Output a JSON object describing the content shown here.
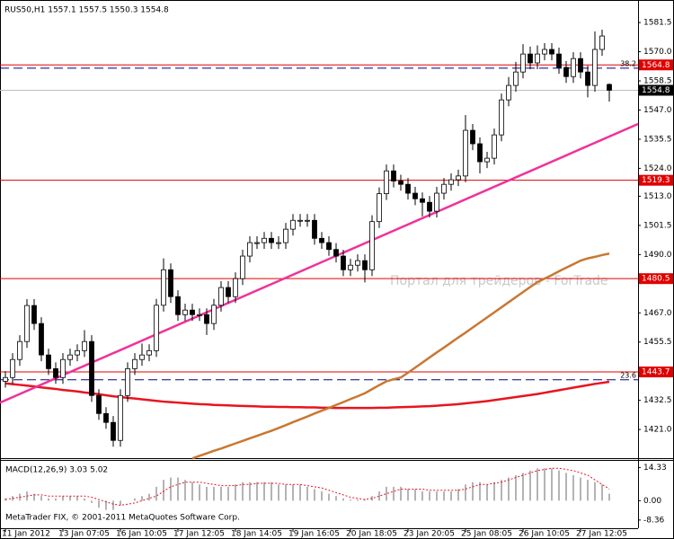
{
  "title": "RUS50,H1  1557.1 1557.5 1550.3 1554.8",
  "footer": "MetaTrader FIX, © 2001-2011 MetaQuotes Software Corp.",
  "watermark": "Портал для трейдеров - ForTrade",
  "chart_data": [
    {
      "type": "candlestick",
      "categories": [
        "11 Jan 2012",
        null,
        null,
        null,
        null,
        null,
        null,
        null,
        "13 Jan 07:05",
        null,
        null,
        null,
        null,
        null,
        null,
        null,
        "16 Jan 10:05",
        null,
        null,
        null,
        null,
        null,
        null,
        null,
        "17 Jan 12:05",
        null,
        null,
        null,
        null,
        null,
        null,
        null,
        "18 Jan 14:05",
        null,
        null,
        null,
        null,
        null,
        null,
        null,
        "19 Jan 16:05",
        null,
        null,
        null,
        null,
        null,
        null,
        null,
        "20 Jan 18:05",
        null,
        null,
        null,
        null,
        null,
        null,
        null,
        "23 Jan 20:05",
        null,
        null,
        null,
        null,
        null,
        null,
        null,
        "25 Jan 08:05",
        null,
        null,
        null,
        null,
        null,
        null,
        null,
        "26 Jan 10:05",
        null,
        null,
        null,
        null,
        null,
        null,
        null,
        "27 Jan 12:05",
        null,
        null,
        null,
        null
      ],
      "open": [
        1440.0,
        1441.5,
        1448.6,
        1455.7,
        1469.9,
        1462.8,
        1450.4,
        1445.0,
        1441.5,
        1448.6,
        1450.4,
        1452.1,
        1455.7,
        1434.4,
        1427.3,
        1423.8,
        1416.7,
        1434.4,
        1445.0,
        1448.6,
        1450.4,
        1452.1,
        1470.0,
        1484.0,
        1473.4,
        1466.3,
        1468.1,
        1466.3,
        1466.3,
        1462.8,
        1470.0,
        1477.0,
        1473.4,
        1480.5,
        1489.4,
        1494.7,
        1494.7,
        1496.4,
        1494.7,
        1494.7,
        1500.0,
        1503.5,
        1503.5,
        1503.5,
        1496.4,
        1494.7,
        1492.0,
        1489.4,
        1484.0,
        1485.8,
        1487.6,
        1484.0,
        1503.0,
        1514.0,
        1523.0,
        1519.0,
        1517.7,
        1514.2,
        1512.0,
        1510.6,
        1507.1,
        1514.2,
        1517.7,
        1519.5,
        1521.0,
        1539.0,
        1533.7,
        1526.6,
        1528.0,
        1537.2,
        1551.0,
        1556.7,
        1562.0,
        1569.1,
        1565.6,
        1569.1,
        1570.9,
        1569.1,
        1563.8,
        1560.2,
        1567.3,
        1562.0,
        1556.7,
        1570.9,
        1557.1
      ],
      "high": [
        1444.0,
        1451.1,
        1458.2,
        1472.4,
        1472.4,
        1465.3,
        1452.9,
        1447.5,
        1451.1,
        1452.9,
        1454.6,
        1460.2,
        1458.2,
        1436.9,
        1429.8,
        1426.3,
        1436.9,
        1447.5,
        1451.1,
        1454.9,
        1454.6,
        1472.5,
        1488.5,
        1486.5,
        1475.9,
        1470.6,
        1470.6,
        1468.8,
        1468.8,
        1472.5,
        1479.5,
        1479.5,
        1483.0,
        1491.9,
        1497.2,
        1497.2,
        1498.9,
        1498.9,
        1497.2,
        1502.5,
        1506.0,
        1506.0,
        1506.0,
        1506.0,
        1498.9,
        1497.2,
        1494.5,
        1491.9,
        1488.3,
        1490.1,
        1490.1,
        1505.5,
        1516.5,
        1525.5,
        1525.5,
        1521.5,
        1520.2,
        1516.7,
        1514.5,
        1513.1,
        1516.7,
        1520.2,
        1522.0,
        1523.5,
        1545.0,
        1541.5,
        1536.2,
        1530.5,
        1539.7,
        1553.5,
        1560.0,
        1566.0,
        1573.0,
        1572.0,
        1572.5,
        1573.4,
        1573.4,
        1571.6,
        1566.3,
        1569.8,
        1569.8,
        1564.5,
        1578.0,
        1578.7,
        1557.5
      ],
      "low": [
        1437.5,
        1439.0,
        1446.1,
        1453.2,
        1460.3,
        1447.9,
        1442.5,
        1439.0,
        1439.0,
        1446.1,
        1447.9,
        1449.6,
        1431.9,
        1424.8,
        1421.3,
        1414.2,
        1414.2,
        1431.9,
        1442.5,
        1446.1,
        1447.9,
        1449.6,
        1467.5,
        1470.9,
        1463.8,
        1463.8,
        1463.8,
        1463.8,
        1458.3,
        1460.3,
        1467.5,
        1470.9,
        1470.9,
        1478.0,
        1486.9,
        1492.2,
        1492.2,
        1492.2,
        1492.2,
        1492.2,
        1497.5,
        1501.0,
        1501.0,
        1493.9,
        1492.2,
        1489.5,
        1486.9,
        1481.5,
        1481.5,
        1483.3,
        1479.0,
        1481.5,
        1500.5,
        1511.5,
        1516.5,
        1515.2,
        1511.7,
        1509.5,
        1505.0,
        1504.6,
        1504.6,
        1511.7,
        1515.2,
        1517.0,
        1518.5,
        1531.2,
        1522.0,
        1524.1,
        1525.5,
        1534.7,
        1548.5,
        1554.2,
        1559.5,
        1563.1,
        1563.1,
        1566.6,
        1566.6,
        1561.3,
        1557.7,
        1557.7,
        1559.5,
        1552.0,
        1554.2,
        1568.4,
        1550.3
      ],
      "close": [
        1441.5,
        1448.6,
        1455.7,
        1469.9,
        1462.8,
        1450.4,
        1445.0,
        1441.5,
        1448.6,
        1450.4,
        1452.1,
        1455.7,
        1434.4,
        1427.3,
        1423.8,
        1416.7,
        1434.4,
        1445.0,
        1448.6,
        1450.4,
        1452.1,
        1470.0,
        1484.0,
        1473.4,
        1466.3,
        1468.1,
        1466.3,
        1466.3,
        1462.8,
        1470.0,
        1477.0,
        1473.4,
        1480.5,
        1489.4,
        1494.7,
        1494.7,
        1496.4,
        1494.7,
        1494.7,
        1500.0,
        1503.5,
        1503.5,
        1503.5,
        1496.4,
        1494.7,
        1492.0,
        1489.4,
        1484.0,
        1485.8,
        1487.6,
        1484.0,
        1503.0,
        1514.0,
        1523.0,
        1519.0,
        1517.7,
        1514.2,
        1512.0,
        1510.6,
        1507.1,
        1514.2,
        1517.7,
        1519.5,
        1521.0,
        1539.0,
        1533.7,
        1526.6,
        1528.0,
        1537.2,
        1551.0,
        1556.7,
        1562.0,
        1569.1,
        1565.6,
        1569.1,
        1570.9,
        1569.1,
        1563.8,
        1560.2,
        1567.3,
        1562.0,
        1556.7,
        1570.9,
        1576.2,
        1554.8
      ],
      "moving_averages": [
        {
          "color": "#e8141e",
          "values": [
            1439.2,
            1438.9,
            1438.6,
            1438.3,
            1438.0,
            1437.6,
            1437.3,
            1437.0,
            1436.6,
            1436.3,
            1436.0,
            1435.6,
            1435.3,
            1434.9,
            1434.5,
            1434.1,
            1433.8,
            1433.5,
            1433.2,
            1432.9,
            1432.6,
            1432.3,
            1432.0,
            1431.8,
            1431.6,
            1431.4,
            1431.2,
            1431.0,
            1430.9,
            1430.7,
            1430.6,
            1430.5,
            1430.4,
            1430.3,
            1430.2,
            1430.1,
            1430.0,
            1430.0,
            1429.9,
            1429.9,
            1429.8,
            1429.8,
            1429.7,
            1429.7,
            1429.6,
            1429.6,
            1429.5,
            1429.5,
            1429.5,
            1429.5,
            1429.5,
            1429.5,
            1429.6,
            1429.6,
            1429.7,
            1429.8,
            1429.9,
            1430.0,
            1430.1,
            1430.2,
            1430.4,
            1430.6,
            1430.8,
            1431.0,
            1431.3,
            1431.6,
            1431.9,
            1432.2,
            1432.6,
            1433.0,
            1433.4,
            1433.8,
            1434.2,
            1434.6,
            1435.0,
            1435.5,
            1436.0,
            1436.5,
            1437.0,
            1437.5,
            1438.0,
            1438.5,
            1439.0,
            1439.4,
            1439.8
          ]
        },
        {
          "color": "#c87832",
          "values": [
            null,
            null,
            null,
            null,
            null,
            null,
            null,
            null,
            null,
            null,
            null,
            null,
            null,
            null,
            null,
            null,
            null,
            null,
            null,
            null,
            null,
            null,
            null,
            null,
            null,
            null,
            1409.6,
            1410.6,
            1411.6,
            1412.6,
            1413.5,
            1414.5,
            1415.5,
            1416.5,
            1417.5,
            1418.5,
            1419.5,
            1420.5,
            1421.6,
            1422.7,
            1423.9,
            1425.0,
            1426.1,
            1427.3,
            1428.4,
            1429.5,
            1430.7,
            1431.8,
            1433.0,
            1434.1,
            1435.3,
            1436.9,
            1438.5,
            1440.0,
            1440.8,
            1441.5,
            1443.4,
            1445.4,
            1447.4,
            1449.4,
            1451.4,
            1453.3,
            1455.3,
            1457.3,
            1459.2,
            1461.2,
            1463.2,
            1465.2,
            1467.2,
            1469.2,
            1471.2,
            1473.2,
            1475.2,
            1477.2,
            1479.1,
            1480.5,
            1481.9,
            1483.4,
            1484.8,
            1486.2,
            1487.6,
            1488.5,
            1489.1,
            1489.8,
            1490.4
          ]
        }
      ],
      "trendline": {
        "color": "#f0329b",
        "values": [
          1431.6,
          1541.5
        ]
      },
      "levels": [
        {
          "value": 1564.8,
          "color": "#e00000"
        },
        {
          "value": 1519.3,
          "color": "#e00000"
        },
        {
          "value": 1480.5,
          "color": "#e00000"
        },
        {
          "value": 1443.7,
          "color": "#e00000"
        }
      ],
      "fib": [
        {
          "label": "38.2",
          "value": 1563.5,
          "color": "#000080"
        },
        {
          "label": "23.6",
          "value": 1440.6,
          "color": "#000080"
        }
      ],
      "current": 1554.8,
      "ylim": [
        1409.7,
        1590.4
      ],
      "yticks": [
        1581.5,
        {
          "value": 1570,
          "label": "1570.0"
        },
        1558.5,
        {
          "value": 1547,
          "label": "1547.0"
        },
        1535.5,
        {
          "value": 1524,
          "label": "1524.0"
        },
        {
          "value": 1513,
          "label": "1513.0"
        },
        1501.5,
        {
          "value": 1490,
          "label": "1490.0"
        },
        {
          "value": 1467,
          "label": "1467.0"
        },
        1455.5,
        1432.5,
        {
          "value": 1421,
          "label": "1421.0"
        }
      ]
    },
    {
      "type": "macd",
      "title": "MACD(12,26,9) 3.03 5.02",
      "values": [
        1,
        2,
        3,
        4,
        3,
        2,
        1,
        1,
        2,
        2,
        2,
        1,
        -1,
        -3,
        -4,
        -4,
        -2,
        0,
        1,
        2,
        3,
        6,
        9,
        10,
        10,
        9,
        8,
        7,
        6,
        6,
        6,
        6,
        7,
        8,
        8,
        8,
        8,
        8,
        7,
        7,
        7,
        7,
        6,
        5,
        4,
        3,
        2,
        1,
        0.5,
        0.5,
        0.5,
        2,
        4,
        6,
        6,
        6,
        5,
        5,
        4,
        4,
        4,
        4,
        4,
        5,
        7,
        8,
        8,
        7,
        8,
        9,
        10,
        11,
        12,
        13,
        14,
        14,
        14,
        13,
        12,
        11,
        10,
        9,
        8,
        7,
        3.03
      ],
      "signal": [
        0.5,
        1,
        1.5,
        2,
        2.5,
        2.5,
        2,
        2,
        2,
        2,
        2,
        2,
        1.5,
        0.5,
        -0.5,
        -1.5,
        -2,
        -1.5,
        -1,
        0,
        1,
        2,
        4,
        6,
        7,
        8,
        8,
        8,
        7.5,
        7,
        6.5,
        6.5,
        6.5,
        7,
        7,
        7.5,
        7.5,
        7.5,
        7.5,
        7,
        7,
        7,
        6.5,
        6,
        5.5,
        4.5,
        3.5,
        2.5,
        1.5,
        1,
        0.5,
        1,
        2,
        3,
        4,
        5,
        5,
        5,
        5,
        4.5,
        4.5,
        4.5,
        4.5,
        4.5,
        5,
        6,
        7,
        7,
        7.5,
        8,
        9,
        10,
        11,
        12,
        13,
        13.5,
        14,
        14,
        13.5,
        13,
        12,
        11,
        9,
        7,
        5.02
      ],
      "bar_color": "#b4b4b4",
      "signal_color": "#e8141e",
      "ylim": [
        -11.9,
        17.6
      ],
      "yticks": [
        14.33,
        {
          "value": 0,
          "label": "0.00"
        },
        -8.36
      ]
    }
  ]
}
